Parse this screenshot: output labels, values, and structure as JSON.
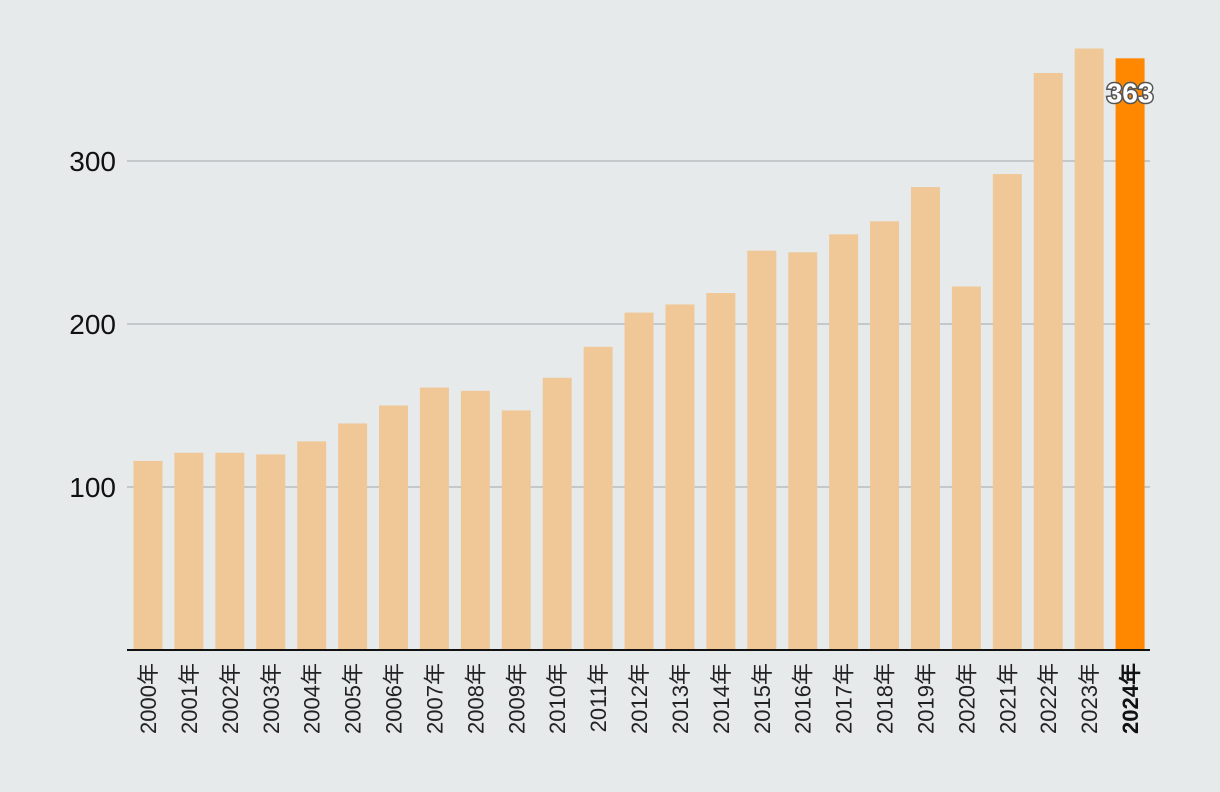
{
  "chart_data": {
    "type": "bar",
    "title": "",
    "xlabel": "",
    "ylabel": "",
    "ylim": [
      0,
      375
    ],
    "yticks": [
      100,
      200,
      300
    ],
    "grid": true,
    "categories": [
      "2000年",
      "2001年",
      "2002年",
      "2003年",
      "2004年",
      "2005年",
      "2006年",
      "2007年",
      "2008年",
      "2009年",
      "2010年",
      "2011年",
      "2012年",
      "2013年",
      "2014年",
      "2015年",
      "2016年",
      "2017年",
      "2018年",
      "2019年",
      "2020年",
      "2021年",
      "2022年",
      "2023年",
      "2024年"
    ],
    "values": [
      116,
      121,
      121,
      120,
      128,
      139,
      150,
      161,
      159,
      147,
      167,
      186,
      207,
      212,
      219,
      245,
      244,
      255,
      263,
      284,
      223,
      292,
      354,
      369,
      363
    ],
    "highlight_index": 24,
    "data_label": {
      "index": 24,
      "text": "363"
    },
    "colors": {
      "bar": "#f0c898",
      "highlight": "#ff8800",
      "grid": "#b7bdc0",
      "axis": "#111111"
    }
  }
}
